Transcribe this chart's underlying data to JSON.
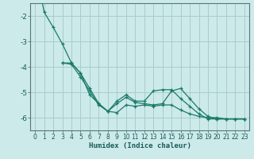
{
  "xlabel": "Humidex (Indice chaleur)",
  "background_color": "#cceaea",
  "grid_color": "#aacccc",
  "line_color": "#1a7a6a",
  "xlim": [
    -0.5,
    23.5
  ],
  "ylim": [
    -6.5,
    -1.5
  ],
  "yticks": [
    -6,
    -5,
    -4,
    -3,
    -2
  ],
  "xticks": [
    0,
    1,
    2,
    3,
    4,
    5,
    6,
    7,
    8,
    9,
    10,
    11,
    12,
    13,
    14,
    15,
    16,
    17,
    18,
    19,
    20,
    21,
    22,
    23
  ],
  "series": [
    [
      0,
      -1.85,
      -2.45,
      -3.1,
      -3.85,
      -4.25,
      -4.85,
      -5.45,
      -5.75,
      -5.8,
      -5.5,
      -5.55,
      -5.5,
      -5.55,
      -5.5,
      -5.5,
      -5.7,
      -5.85,
      -5.95,
      -6.0,
      -6.0,
      -6.05,
      -6.05,
      -6.05
    ],
    [
      null,
      null,
      null,
      -3.85,
      -3.9,
      -4.4,
      -4.95,
      -5.5,
      -5.75,
      -5.45,
      -5.2,
      -5.4,
      -5.45,
      -5.5,
      -5.45,
      -4.95,
      -4.85,
      -5.25,
      -5.65,
      -5.95,
      -6.05,
      -6.05,
      -6.05,
      -6.05
    ],
    [
      null,
      null,
      null,
      -3.85,
      -3.85,
      -4.25,
      -5.1,
      -5.45,
      -5.75,
      -5.35,
      -5.1,
      -5.35,
      -5.35,
      -4.95,
      -4.9,
      -4.9,
      -5.25,
      -5.55,
      -5.85,
      -6.05,
      -6.05,
      -6.05,
      -6.05,
      -6.05
    ]
  ]
}
